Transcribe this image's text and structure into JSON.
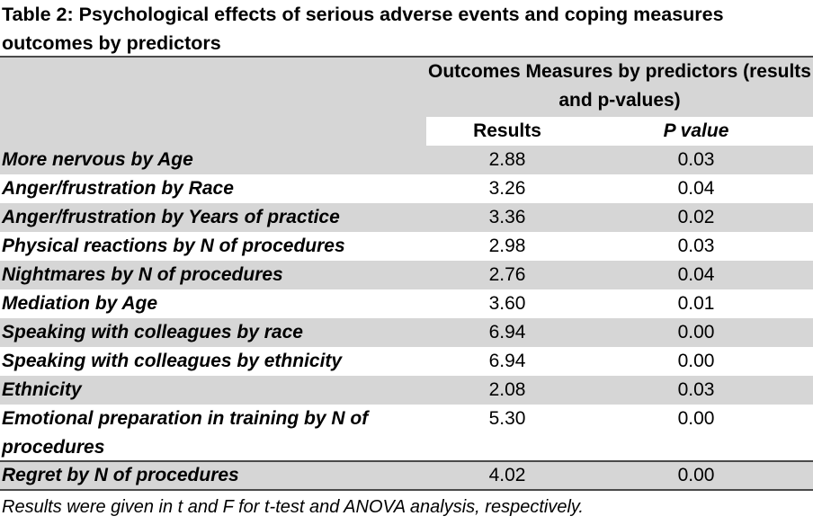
{
  "title": "Table 2: Psychological effects of serious adverse events and coping measures outcomes by predictors",
  "header": {
    "group_label": "Outcomes Measures by predictors (results and p-values)",
    "col_results": "Results",
    "col_pvalue": "P value"
  },
  "rows": [
    {
      "label": "More nervous by Age",
      "result": "2.88",
      "p": "0.03"
    },
    {
      "label": "Anger/frustration by Race",
      "result": "3.26",
      "p": "0.04"
    },
    {
      "label": "Anger/frustration by Years of practice",
      "result": "3.36",
      "p": "0.02"
    },
    {
      "label": "Physical reactions by N of procedures",
      "result": "2.98",
      "p": "0.03"
    },
    {
      "label": "Nightmares by N of procedures",
      "result": "2.76",
      "p": "0.04"
    },
    {
      "label": "Mediation by Age",
      "result": "3.60",
      "p": "0.01"
    },
    {
      "label": "Speaking with colleagues by race",
      "result": "6.94",
      "p": "0.00"
    },
    {
      "label": "Speaking with colleagues by ethnicity",
      "result": "6.94",
      "p": "0.00"
    },
    {
      "label": "Ethnicity",
      "result": "2.08",
      "p": "0.03"
    },
    {
      "label": "Emotional preparation in training by N of procedures",
      "result": "5.30",
      "p": "0.00"
    },
    {
      "label": "Regret by N of procedures",
      "result": "4.02",
      "p": "0.00"
    }
  ],
  "footnote": "Results were given in t and F for t-test and ANOVA analysis, respectively."
}
